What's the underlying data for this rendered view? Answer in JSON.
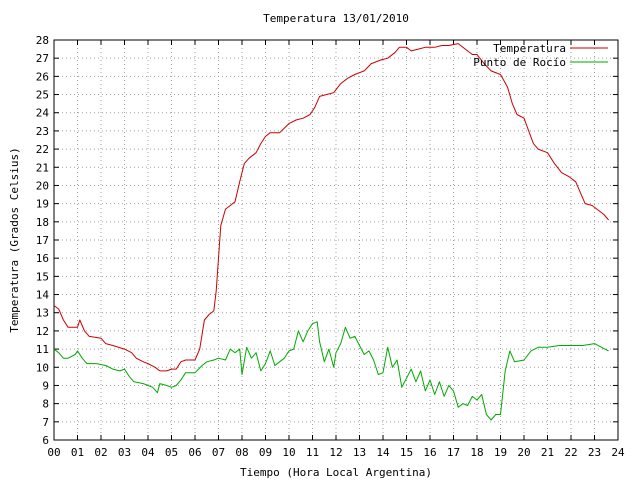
{
  "chart_data": {
    "type": "line",
    "title": "Temperatura 13/01/2010",
    "xlabel": "Tiempo (Hora Local Argentina)",
    "ylabel": "Temperatura (Grados Celsius)",
    "xlim": [
      0,
      24
    ],
    "ylim": [
      6,
      28
    ],
    "x_ticks": [
      "00",
      "01",
      "02",
      "03",
      "04",
      "05",
      "06",
      "07",
      "08",
      "09",
      "10",
      "11",
      "12",
      "13",
      "14",
      "15",
      "16",
      "17",
      "18",
      "19",
      "20",
      "21",
      "22",
      "23",
      "24"
    ],
    "y_ticks": [
      6,
      7,
      8,
      9,
      10,
      11,
      12,
      13,
      14,
      15,
      16,
      17,
      18,
      19,
      20,
      21,
      22,
      23,
      24,
      25,
      26,
      27,
      28
    ],
    "grid": true,
    "legend": "top-right",
    "series": [
      {
        "name": "Temperatura",
        "color": "#cc0000",
        "points": [
          [
            0.0,
            13.4
          ],
          [
            0.2,
            13.2
          ],
          [
            0.4,
            12.6
          ],
          [
            0.6,
            12.2
          ],
          [
            1.0,
            12.2
          ],
          [
            1.1,
            12.6
          ],
          [
            1.3,
            12.0
          ],
          [
            1.5,
            11.7
          ],
          [
            2.0,
            11.6
          ],
          [
            2.2,
            11.3
          ],
          [
            2.5,
            11.2
          ],
          [
            3.0,
            11.0
          ],
          [
            3.3,
            10.8
          ],
          [
            3.5,
            10.5
          ],
          [
            3.8,
            10.3
          ],
          [
            4.0,
            10.2
          ],
          [
            4.3,
            10.0
          ],
          [
            4.5,
            9.8
          ],
          [
            4.8,
            9.8
          ],
          [
            5.0,
            9.9
          ],
          [
            5.2,
            9.9
          ],
          [
            5.4,
            10.3
          ],
          [
            5.6,
            10.4
          ],
          [
            6.0,
            10.4
          ],
          [
            6.2,
            11.0
          ],
          [
            6.4,
            12.6
          ],
          [
            6.6,
            12.9
          ],
          [
            6.8,
            13.1
          ],
          [
            6.9,
            14.2
          ],
          [
            7.0,
            16.0
          ],
          [
            7.1,
            17.8
          ],
          [
            7.3,
            18.7
          ],
          [
            7.5,
            18.9
          ],
          [
            7.7,
            19.1
          ],
          [
            7.9,
            20.2
          ],
          [
            8.1,
            21.2
          ],
          [
            8.3,
            21.5
          ],
          [
            8.6,
            21.8
          ],
          [
            8.8,
            22.3
          ],
          [
            9.0,
            22.7
          ],
          [
            9.2,
            22.9
          ],
          [
            9.6,
            22.9
          ],
          [
            10.0,
            23.4
          ],
          [
            10.3,
            23.6
          ],
          [
            10.6,
            23.7
          ],
          [
            10.9,
            23.9
          ],
          [
            11.1,
            24.3
          ],
          [
            11.3,
            24.9
          ],
          [
            11.6,
            25.0
          ],
          [
            11.9,
            25.1
          ],
          [
            12.2,
            25.6
          ],
          [
            12.5,
            25.9
          ],
          [
            12.8,
            26.1
          ],
          [
            13.2,
            26.3
          ],
          [
            13.5,
            26.7
          ],
          [
            13.9,
            26.9
          ],
          [
            14.2,
            27.0
          ],
          [
            14.5,
            27.3
          ],
          [
            14.7,
            27.6
          ],
          [
            15.0,
            27.6
          ],
          [
            15.2,
            27.4
          ],
          [
            15.5,
            27.5
          ],
          [
            15.8,
            27.6
          ],
          [
            16.2,
            27.6
          ],
          [
            16.5,
            27.7
          ],
          [
            16.8,
            27.7
          ],
          [
            17.2,
            27.8
          ],
          [
            17.5,
            27.5
          ],
          [
            17.8,
            27.2
          ],
          [
            18.0,
            27.2
          ],
          [
            18.3,
            26.7
          ],
          [
            18.6,
            26.3
          ],
          [
            19.0,
            26.1
          ],
          [
            19.3,
            25.4
          ],
          [
            19.5,
            24.5
          ],
          [
            19.7,
            23.9
          ],
          [
            20.0,
            23.7
          ],
          [
            20.2,
            23.0
          ],
          [
            20.4,
            22.3
          ],
          [
            20.6,
            22.0
          ],
          [
            21.0,
            21.8
          ],
          [
            21.3,
            21.2
          ],
          [
            21.6,
            20.7
          ],
          [
            21.9,
            20.5
          ],
          [
            22.2,
            20.2
          ],
          [
            22.4,
            19.6
          ],
          [
            22.6,
            19.0
          ],
          [
            22.9,
            18.9
          ],
          [
            23.2,
            18.6
          ],
          [
            23.4,
            18.4
          ],
          [
            23.6,
            18.1
          ]
        ]
      },
      {
        "name": "Punto de Rocío",
        "color": "#00aa00",
        "points": [
          [
            0.0,
            11.0
          ],
          [
            0.2,
            10.8
          ],
          [
            0.4,
            10.5
          ],
          [
            0.6,
            10.5
          ],
          [
            0.9,
            10.7
          ],
          [
            1.0,
            10.9
          ],
          [
            1.2,
            10.5
          ],
          [
            1.4,
            10.2
          ],
          [
            1.8,
            10.2
          ],
          [
            2.2,
            10.1
          ],
          [
            2.5,
            9.9
          ],
          [
            2.8,
            9.8
          ],
          [
            3.0,
            9.9
          ],
          [
            3.2,
            9.5
          ],
          [
            3.4,
            9.2
          ],
          [
            3.8,
            9.1
          ],
          [
            4.0,
            9.0
          ],
          [
            4.2,
            8.9
          ],
          [
            4.4,
            8.6
          ],
          [
            4.5,
            9.1
          ],
          [
            4.8,
            9.0
          ],
          [
            5.0,
            8.9
          ],
          [
            5.2,
            9.0
          ],
          [
            5.4,
            9.3
          ],
          [
            5.6,
            9.7
          ],
          [
            6.0,
            9.7
          ],
          [
            6.3,
            10.1
          ],
          [
            6.5,
            10.3
          ],
          [
            6.8,
            10.4
          ],
          [
            7.0,
            10.5
          ],
          [
            7.3,
            10.4
          ],
          [
            7.5,
            11.0
          ],
          [
            7.7,
            10.8
          ],
          [
            7.9,
            11.0
          ],
          [
            8.0,
            9.6
          ],
          [
            8.2,
            11.1
          ],
          [
            8.4,
            10.5
          ],
          [
            8.6,
            10.8
          ],
          [
            8.8,
            9.8
          ],
          [
            9.0,
            10.2
          ],
          [
            9.2,
            10.9
          ],
          [
            9.4,
            10.1
          ],
          [
            9.6,
            10.3
          ],
          [
            9.8,
            10.5
          ],
          [
            10.0,
            10.9
          ],
          [
            10.2,
            11.0
          ],
          [
            10.4,
            12.0
          ],
          [
            10.6,
            11.4
          ],
          [
            10.8,
            12.0
          ],
          [
            11.0,
            12.4
          ],
          [
            11.2,
            12.5
          ],
          [
            11.3,
            11.4
          ],
          [
            11.5,
            10.3
          ],
          [
            11.7,
            11.0
          ],
          [
            11.9,
            10.0
          ],
          [
            12.0,
            10.8
          ],
          [
            12.2,
            11.3
          ],
          [
            12.4,
            12.2
          ],
          [
            12.6,
            11.6
          ],
          [
            12.8,
            11.7
          ],
          [
            13.0,
            11.2
          ],
          [
            13.2,
            10.7
          ],
          [
            13.4,
            10.9
          ],
          [
            13.6,
            10.4
          ],
          [
            13.8,
            9.6
          ],
          [
            14.0,
            9.7
          ],
          [
            14.2,
            11.1
          ],
          [
            14.4,
            10.0
          ],
          [
            14.6,
            10.4
          ],
          [
            14.8,
            8.9
          ],
          [
            15.0,
            9.4
          ],
          [
            15.2,
            9.9
          ],
          [
            15.4,
            9.2
          ],
          [
            15.6,
            9.8
          ],
          [
            15.8,
            8.7
          ],
          [
            16.0,
            9.3
          ],
          [
            16.2,
            8.5
          ],
          [
            16.4,
            9.2
          ],
          [
            16.6,
            8.4
          ],
          [
            16.8,
            9.0
          ],
          [
            17.0,
            8.7
          ],
          [
            17.2,
            7.8
          ],
          [
            17.4,
            8.0
          ],
          [
            17.6,
            7.9
          ],
          [
            17.8,
            8.4
          ],
          [
            18.0,
            8.2
          ],
          [
            18.2,
            8.5
          ],
          [
            18.4,
            7.4
          ],
          [
            18.6,
            7.1
          ],
          [
            18.8,
            7.4
          ],
          [
            19.0,
            7.4
          ],
          [
            19.2,
            9.8
          ],
          [
            19.4,
            10.9
          ],
          [
            19.6,
            10.3
          ],
          [
            20.0,
            10.4
          ],
          [
            20.3,
            10.9
          ],
          [
            20.6,
            11.1
          ],
          [
            21.0,
            11.1
          ],
          [
            21.5,
            11.2
          ],
          [
            22.0,
            11.2
          ],
          [
            22.5,
            11.2
          ],
          [
            23.0,
            11.3
          ],
          [
            23.3,
            11.1
          ],
          [
            23.6,
            10.9
          ]
        ]
      }
    ]
  }
}
